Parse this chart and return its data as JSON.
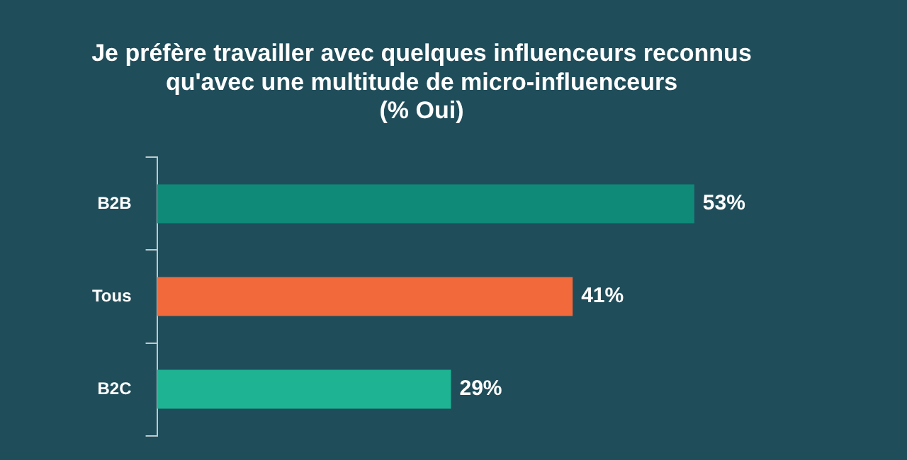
{
  "chart_data": {
    "type": "bar",
    "orientation": "horizontal",
    "title": "Je préfère travailler avec quelques influenceurs reconnus\nqu'avec une multitude de micro-influenceurs\n(% Oui)",
    "categories": [
      "B2B",
      "Tous",
      "B2C"
    ],
    "values": [
      53,
      41,
      29
    ],
    "colors": [
      "#0f8a78",
      "#f26a3b",
      "#1db393"
    ],
    "value_labels": [
      "53%",
      "41%",
      "29%"
    ],
    "tick_labels": "y",
    "grid": false,
    "legend": false
  }
}
